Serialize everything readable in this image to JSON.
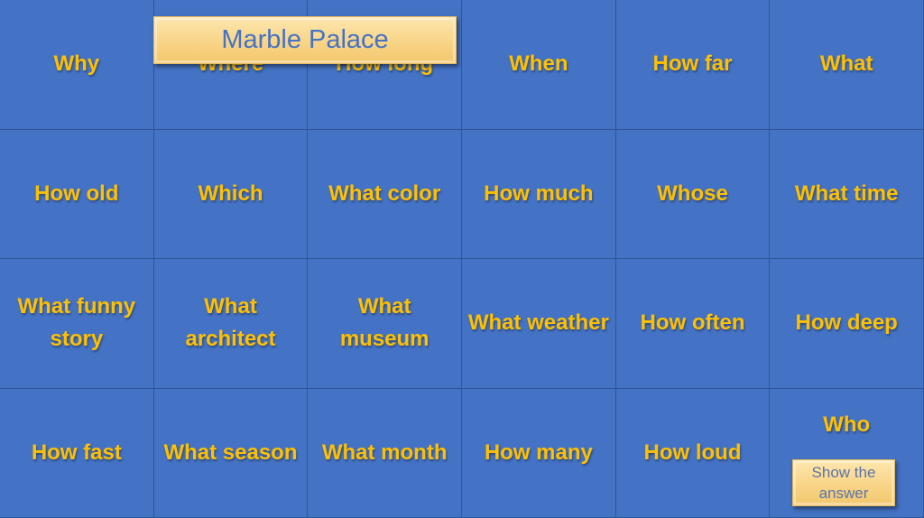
{
  "title": "Marble Palace",
  "cells": [
    "Why",
    "Where",
    "How long",
    "When",
    "How far",
    "What",
    "How old",
    "Which",
    "What color",
    "How much",
    "Whose",
    "What time",
    "What funny story",
    "What architect",
    "What museum",
    "What weather",
    "How often",
    "How deep",
    "How fast",
    "What season",
    "What month",
    "How many",
    "How loud",
    "Who"
  ],
  "answer_button": "Show the answer",
  "colors": {
    "background": "#4472C4",
    "text": "#FFC000",
    "button": "#F9D68A"
  }
}
